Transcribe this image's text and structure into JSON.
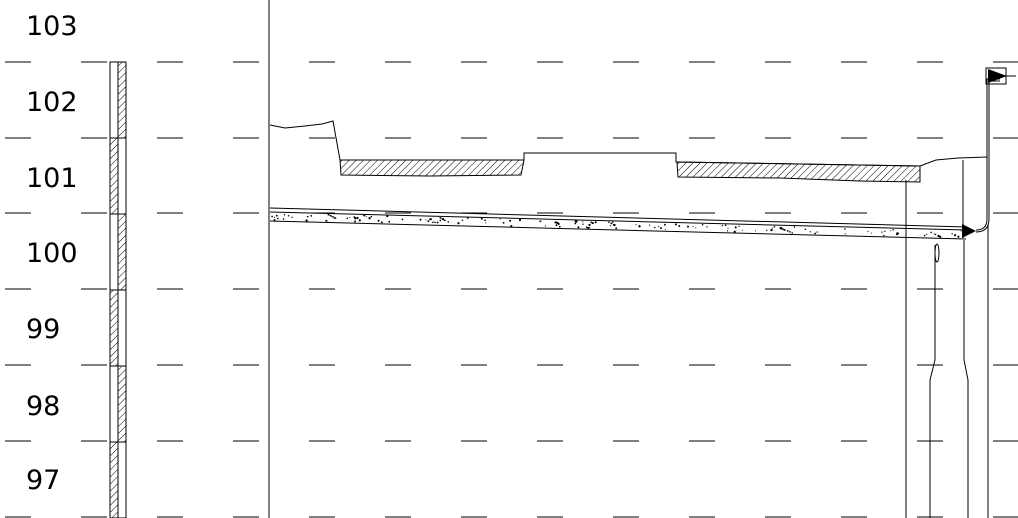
{
  "elevation_labels": [
    "103",
    "102",
    "101",
    "100",
    "99",
    "98",
    "97"
  ],
  "colors": {
    "line": "#000000",
    "hatch": "#000000",
    "background": "#ffffff"
  }
}
